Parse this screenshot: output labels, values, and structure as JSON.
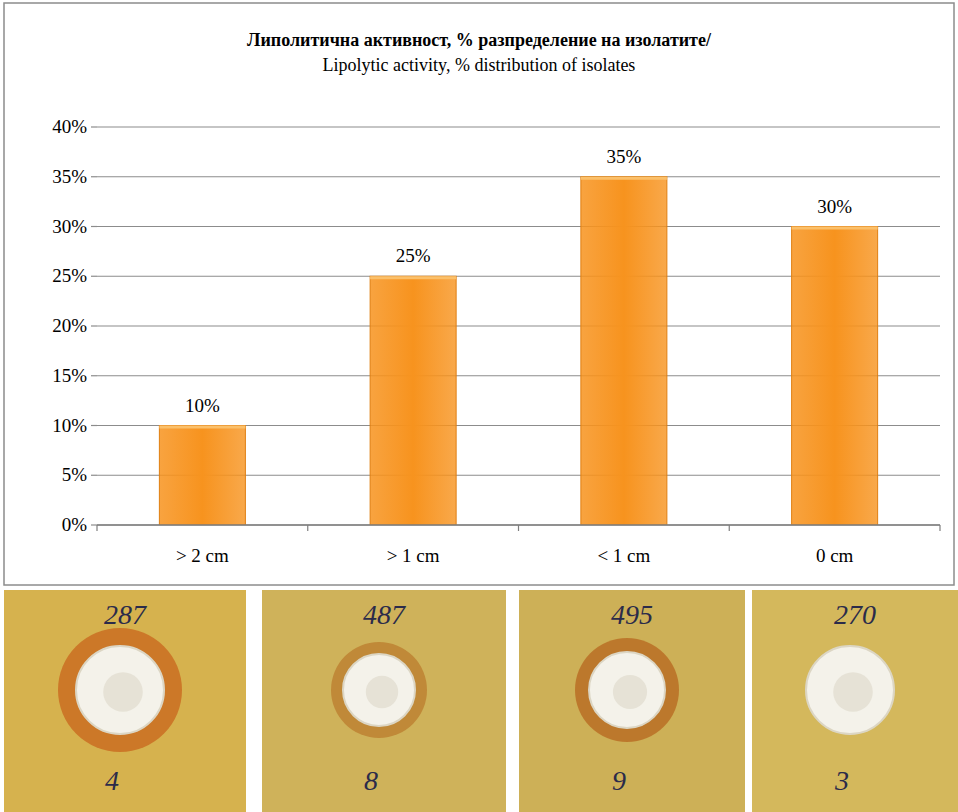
{
  "chart_data": {
    "type": "bar",
    "title": "Липолитична активност, % разпределение на изолатите/",
    "subtitle": "Lipolytic activity, % distribution of isolates",
    "categories": [
      "> 2 cm",
      "> 1 cm",
      "< 1 cm",
      "0 cm"
    ],
    "values": [
      10,
      25,
      35,
      30
    ],
    "value_labels": [
      "10%",
      "25%",
      "35%",
      "30%"
    ],
    "data_labels": true,
    "color": "#f7931e",
    "ylim": [
      0,
      40
    ],
    "yticks": [
      {
        "value": 0,
        "label": "0%"
      },
      {
        "value": 5,
        "label": "5%"
      },
      {
        "value": 10,
        "label": "10%"
      },
      {
        "value": 15,
        "label": "15%"
      },
      {
        "value": 20,
        "label": "20%"
      },
      {
        "value": 25,
        "label": "25%"
      },
      {
        "value": 30,
        "label": "30%"
      },
      {
        "value": 35,
        "label": "35%"
      },
      {
        "value": 40,
        "label": "40%"
      }
    ],
    "grid": true
  },
  "photos": [
    {
      "top": "287",
      "bottom": "4"
    },
    {
      "top": "487",
      "bottom": "8"
    },
    {
      "top": "495",
      "bottom": "9"
    },
    {
      "top": "270",
      "bottom": "3"
    }
  ]
}
